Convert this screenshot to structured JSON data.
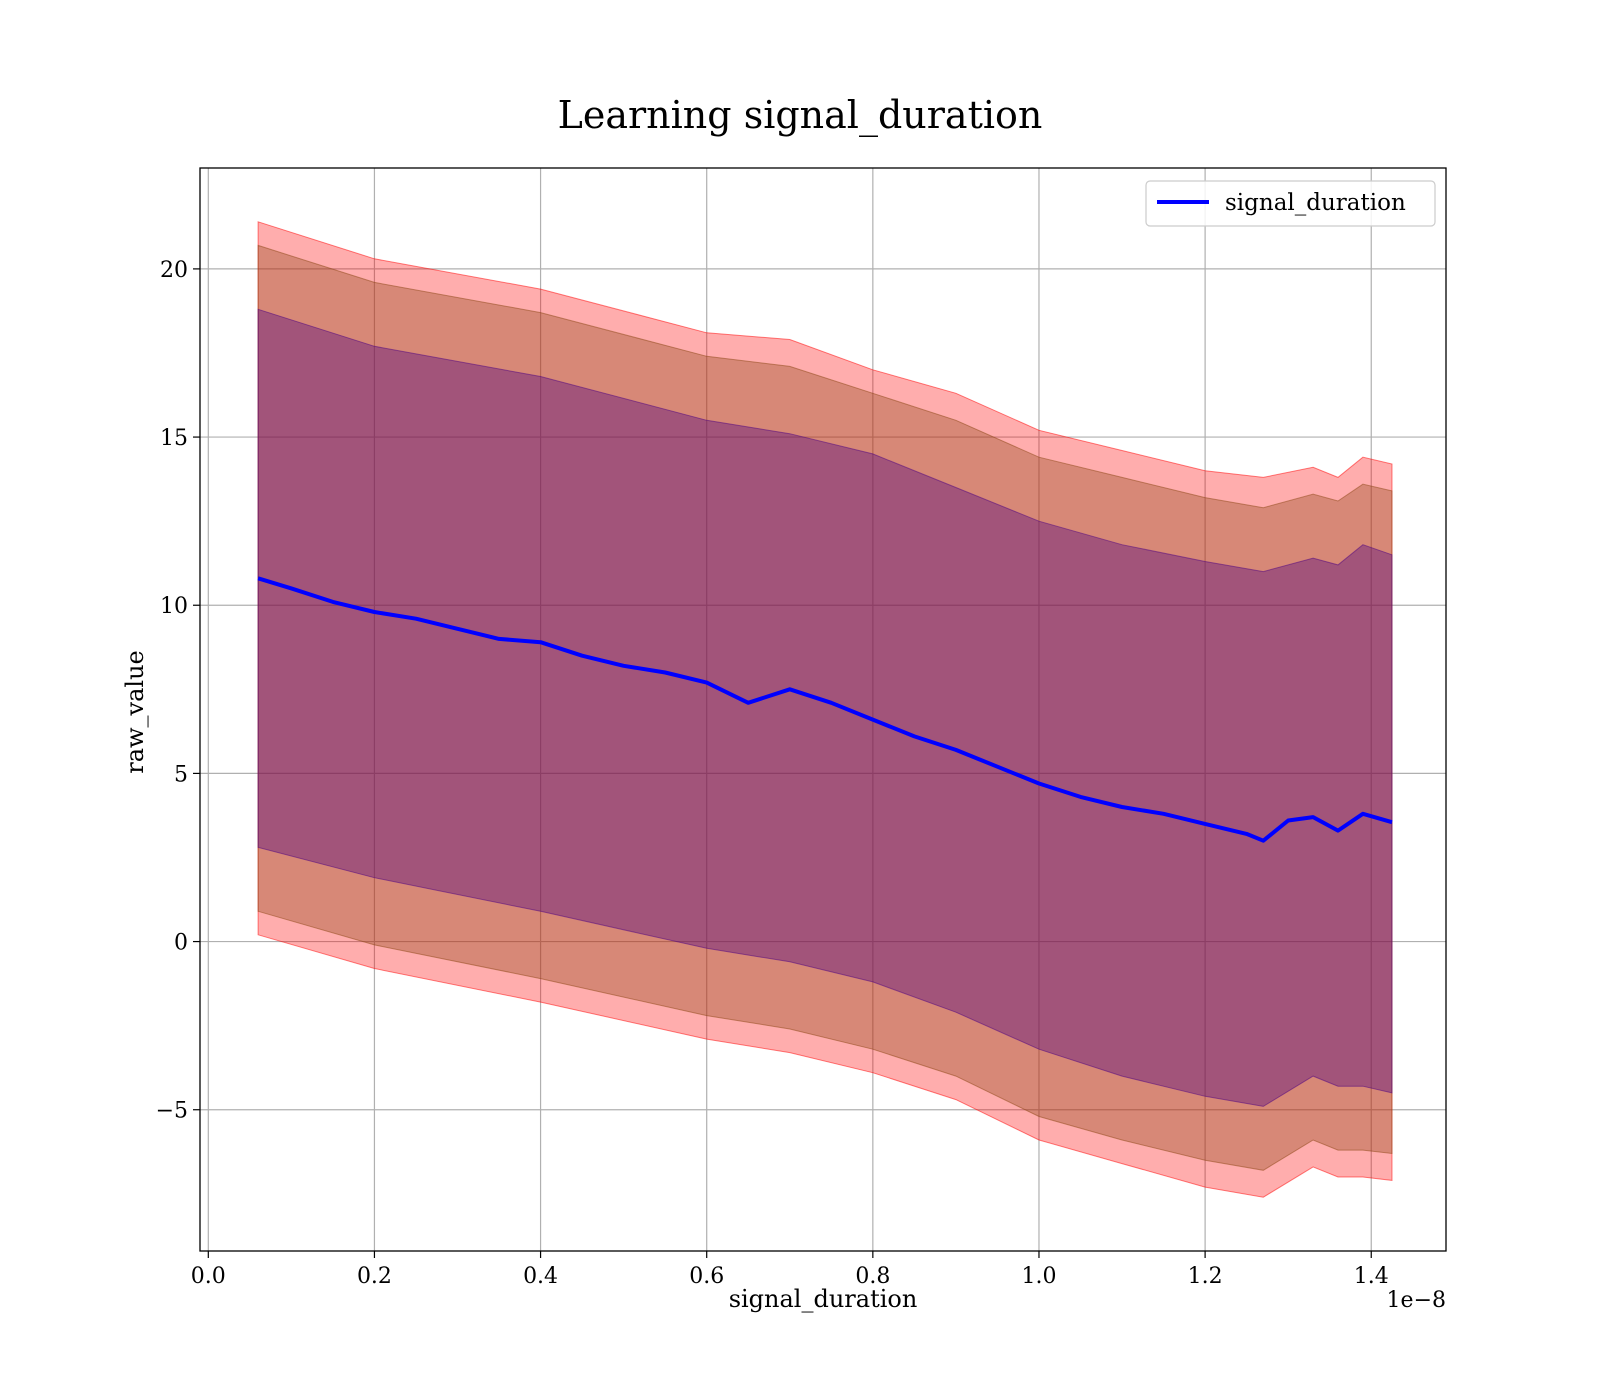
{
  "chart_data": {
    "type": "line",
    "title": "Learning signal_duration",
    "xlabel": "signal_duration",
    "ylabel": "raw_value",
    "x_offset_text": "1e−8",
    "x_scale_exponent": -8,
    "xlim": [
      -1e-10,
      1.49e-08
    ],
    "ylim": [
      -9.2,
      23
    ],
    "x_ticks": [
      0.0,
      2e-09,
      4e-09,
      6e-09,
      8e-09,
      1e-08,
      1.2e-08,
      1.4e-08
    ],
    "x_tick_labels": [
      "0.0",
      "0.2",
      "0.4",
      "0.6",
      "0.8",
      "1.0",
      "1.2",
      "1.4"
    ],
    "y_ticks": [
      -5,
      0,
      5,
      10,
      15,
      20
    ],
    "y_tick_labels": [
      "−5",
      "0",
      "5",
      "10",
      "15",
      "20"
    ],
    "grid": true,
    "legend_position": "top-right",
    "colors": {
      "line": "#0000ff",
      "band_outer": "#ff0000",
      "band_middle": "#8b4513",
      "band_inner": "#4b0082"
    },
    "series": [
      {
        "name": "signal_duration",
        "x": [
          6e-10,
          1e-09,
          1.5e-09,
          2e-09,
          2.5e-09,
          3e-09,
          3.5e-09,
          4e-09,
          4.5e-09,
          5e-09,
          5.5e-09,
          6e-09,
          6.5e-09,
          7e-09,
          7.5e-09,
          8e-09,
          8.5e-09,
          9e-09,
          9.5e-09,
          1e-08,
          1.05e-08,
          1.1e-08,
          1.15e-08,
          1.2e-08,
          1.25e-08,
          1.27e-08,
          1.3e-08,
          1.33e-08,
          1.36e-08,
          1.39e-08,
          1.425e-08
        ],
        "y": [
          10.8,
          10.5,
          10.1,
          9.8,
          9.6,
          9.3,
          9.0,
          8.9,
          8.5,
          8.2,
          8.0,
          7.7,
          7.1,
          7.5,
          7.1,
          6.6,
          6.1,
          5.7,
          5.2,
          4.7,
          4.3,
          4.0,
          3.8,
          3.5,
          3.2,
          3.0,
          3.6,
          3.7,
          3.3,
          3.8,
          3.55
        ]
      }
    ],
    "bands": [
      {
        "level": "outer",
        "x": [
          6e-10,
          2e-09,
          4e-09,
          6e-09,
          7e-09,
          8e-09,
          9e-09,
          1e-08,
          1.1e-08,
          1.2e-08,
          1.27e-08,
          1.33e-08,
          1.36e-08,
          1.39e-08,
          1.425e-08
        ],
        "upper": [
          21.4,
          20.3,
          19.4,
          18.1,
          17.9,
          17.0,
          16.3,
          15.2,
          14.6,
          14.0,
          13.8,
          14.1,
          13.8,
          14.4,
          14.2
        ],
        "lower": [
          0.2,
          -0.8,
          -1.8,
          -2.9,
          -3.3,
          -3.9,
          -4.7,
          -5.9,
          -6.6,
          -7.3,
          -7.6,
          -6.7,
          -7.0,
          -7.0,
          -7.1
        ]
      },
      {
        "level": "middle",
        "x": [
          6e-10,
          2e-09,
          4e-09,
          6e-09,
          7e-09,
          8e-09,
          9e-09,
          1e-08,
          1.1e-08,
          1.2e-08,
          1.27e-08,
          1.33e-08,
          1.36e-08,
          1.39e-08,
          1.425e-08
        ],
        "upper": [
          20.7,
          19.6,
          18.7,
          17.4,
          17.1,
          16.3,
          15.5,
          14.4,
          13.8,
          13.2,
          12.9,
          13.3,
          13.1,
          13.6,
          13.4
        ],
        "lower": [
          0.9,
          -0.1,
          -1.1,
          -2.2,
          -2.6,
          -3.2,
          -4.0,
          -5.2,
          -5.9,
          -6.5,
          -6.8,
          -5.9,
          -6.2,
          -6.2,
          -6.3
        ]
      },
      {
        "level": "inner",
        "x": [
          6e-10,
          2e-09,
          4e-09,
          6e-09,
          7e-09,
          8e-09,
          9e-09,
          1e-08,
          1.1e-08,
          1.2e-08,
          1.27e-08,
          1.33e-08,
          1.36e-08,
          1.39e-08,
          1.425e-08
        ],
        "upper": [
          18.8,
          17.7,
          16.8,
          15.5,
          15.1,
          14.5,
          13.5,
          12.5,
          11.8,
          11.3,
          11.0,
          11.4,
          11.2,
          11.8,
          11.5
        ],
        "lower": [
          2.8,
          1.9,
          0.9,
          -0.2,
          -0.6,
          -1.2,
          -2.1,
          -3.2,
          -4.0,
          -4.6,
          -4.9,
          -4.0,
          -4.3,
          -4.3,
          -4.5
        ]
      }
    ]
  }
}
